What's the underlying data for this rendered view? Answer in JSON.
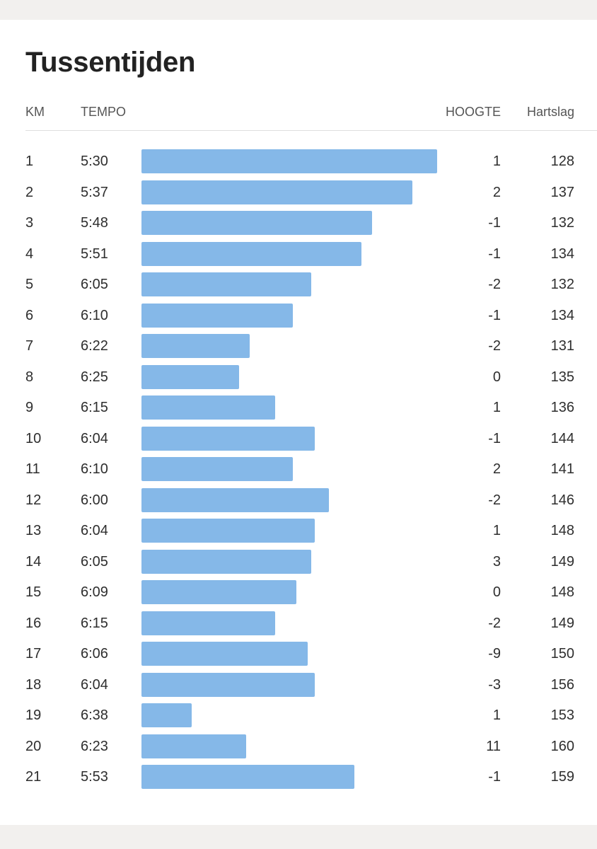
{
  "title": "Tussentijden",
  "headers": {
    "km": "KM",
    "tempo": "TEMPO",
    "hoogte": "HOOGTE",
    "hartslag": "Hartslag"
  },
  "colors": {
    "bar": "#85b8e8",
    "background": "#f2f0ee",
    "card": "#ffffff"
  },
  "chart_data": {
    "type": "bar",
    "orientation": "horizontal",
    "value_note": "bar length reflects pace; faster pace = longer bar",
    "categories": [
      "1",
      "2",
      "3",
      "4",
      "5",
      "6",
      "7",
      "8",
      "9",
      "10",
      "11",
      "12",
      "13",
      "14",
      "15",
      "16",
      "17",
      "18",
      "19",
      "20",
      "21"
    ],
    "series": [
      {
        "name": "TEMPO",
        "values": [
          "5:30",
          "5:37",
          "5:48",
          "5:51",
          "6:05",
          "6:10",
          "6:22",
          "6:25",
          "6:15",
          "6:04",
          "6:10",
          "6:00",
          "6:04",
          "6:05",
          "6:09",
          "6:15",
          "6:06",
          "6:04",
          "6:38",
          "6:23",
          "5:53"
        ]
      }
    ]
  },
  "rows": [
    {
      "km": "1",
      "tempo": "5:30",
      "hoogte": "1",
      "hartslag": "128"
    },
    {
      "km": "2",
      "tempo": "5:37",
      "hoogte": "2",
      "hartslag": "137"
    },
    {
      "km": "3",
      "tempo": "5:48",
      "hoogte": "-1",
      "hartslag": "132"
    },
    {
      "km": "4",
      "tempo": "5:51",
      "hoogte": "-1",
      "hartslag": "134"
    },
    {
      "km": "5",
      "tempo": "6:05",
      "hoogte": "-2",
      "hartslag": "132"
    },
    {
      "km": "6",
      "tempo": "6:10",
      "hoogte": "-1",
      "hartslag": "134"
    },
    {
      "km": "7",
      "tempo": "6:22",
      "hoogte": "-2",
      "hartslag": "131"
    },
    {
      "km": "8",
      "tempo": "6:25",
      "hoogte": "0",
      "hartslag": "135"
    },
    {
      "km": "9",
      "tempo": "6:15",
      "hoogte": "1",
      "hartslag": "136"
    },
    {
      "km": "10",
      "tempo": "6:04",
      "hoogte": "-1",
      "hartslag": "144"
    },
    {
      "km": "11",
      "tempo": "6:10",
      "hoogte": "2",
      "hartslag": "141"
    },
    {
      "km": "12",
      "tempo": "6:00",
      "hoogte": "-2",
      "hartslag": "146"
    },
    {
      "km": "13",
      "tempo": "6:04",
      "hoogte": "1",
      "hartslag": "148"
    },
    {
      "km": "14",
      "tempo": "6:05",
      "hoogte": "3",
      "hartslag": "149"
    },
    {
      "km": "15",
      "tempo": "6:09",
      "hoogte": "0",
      "hartslag": "148"
    },
    {
      "km": "16",
      "tempo": "6:15",
      "hoogte": "-2",
      "hartslag": "149"
    },
    {
      "km": "17",
      "tempo": "6:06",
      "hoogte": "-9",
      "hartslag": "150"
    },
    {
      "km": "18",
      "tempo": "6:04",
      "hoogte": "-3",
      "hartslag": "156"
    },
    {
      "km": "19",
      "tempo": "6:38",
      "hoogte": "1",
      "hartslag": "153"
    },
    {
      "km": "20",
      "tempo": "6:23",
      "hoogte": "11",
      "hartslag": "160"
    },
    {
      "km": "21",
      "tempo": "5:53",
      "hoogte": "-1",
      "hartslag": "159"
    }
  ]
}
